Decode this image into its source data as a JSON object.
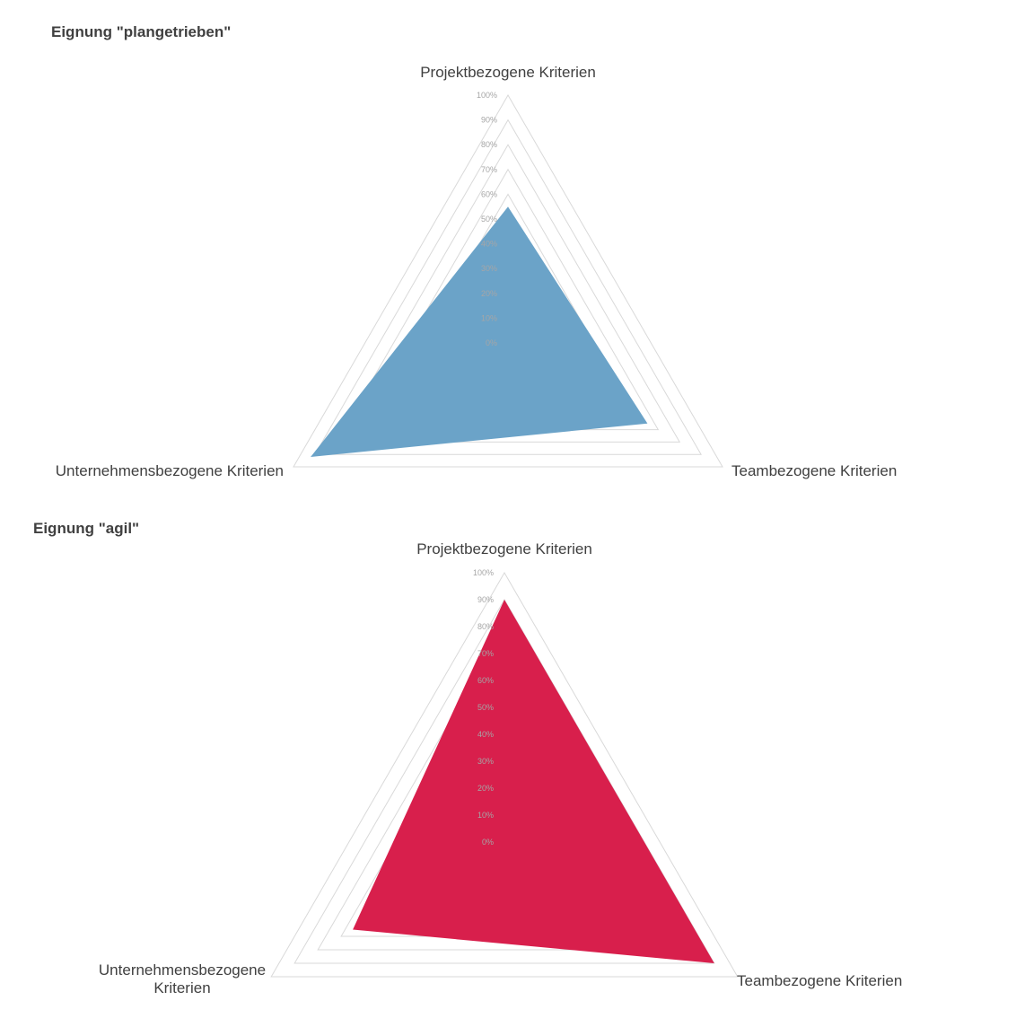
{
  "chart_data": [
    {
      "type": "radar",
      "title": "Eignung \"plangetrieben\"",
      "categories": [
        "Projektbezogene Kriterien",
        "Teambezogene Kriterien",
        "Unternehmensbezogene Kriterien"
      ],
      "category_lines": [
        [
          "Projektbezogene Kriterien"
        ],
        [
          "Teambezogene Kriterien"
        ],
        [
          "Unternehmensbezogene Kriterien"
        ]
      ],
      "values": [
        0.55,
        0.65,
        0.92
      ],
      "tick_labels": [
        "0%",
        "10%",
        "20%",
        "30%",
        "40%",
        "50%",
        "60%",
        "70%",
        "80%",
        "90%",
        "100%"
      ],
      "ylim": [
        0,
        1
      ],
      "fill_color": "#6ba3c8",
      "grid": true
    },
    {
      "type": "radar",
      "title": "Eignung \"agil\"",
      "categories": [
        "Projektbezogene Kriterien",
        "Teambezogene Kriterien",
        "Unternehmensbezogene Kriterien"
      ],
      "category_lines": [
        [
          "Projektbezogene Kriterien"
        ],
        [
          "Teambezogene Kriterien"
        ],
        [
          "Unternehmensbezogene",
          "Kriterien"
        ]
      ],
      "values": [
        0.9,
        0.9,
        0.65
      ],
      "tick_labels": [
        "0%",
        "10%",
        "20%",
        "30%",
        "40%",
        "50%",
        "60%",
        "70%",
        "80%",
        "90%",
        "100%"
      ],
      "ylim": [
        0,
        1
      ],
      "fill_color": "#d81f4c",
      "grid": true
    }
  ]
}
